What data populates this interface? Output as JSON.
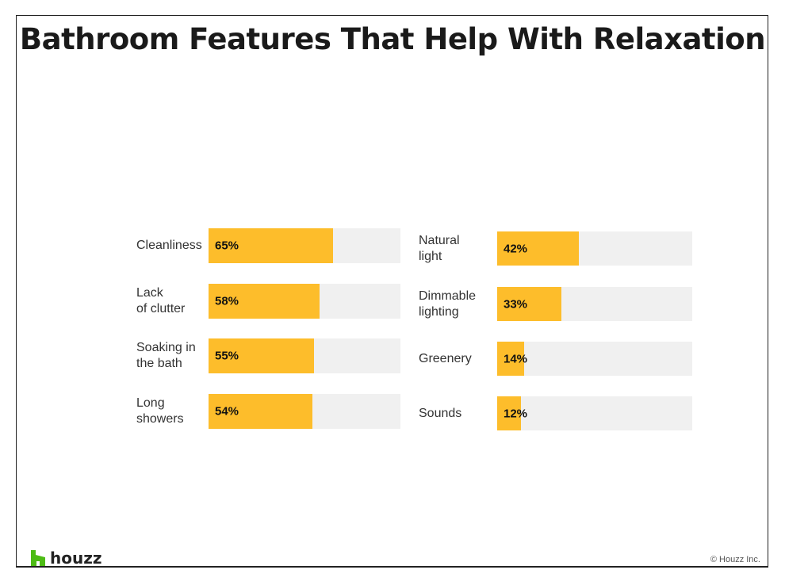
{
  "chart_data": {
    "type": "bar",
    "title": "Bathroom Features That Help With Relaxation",
    "xlabel": "",
    "ylabel": "",
    "xlim": [
      0,
      100
    ],
    "unit": "%",
    "groups": [
      {
        "categories": [
          "Cleanliness",
          "Lack\nof clutter",
          "Soaking in\nthe bath",
          "Long\nshowers"
        ],
        "values": [
          65,
          58,
          55,
          54
        ]
      },
      {
        "categories": [
          "Natural\nlight",
          "Dimmable\nlighting",
          "Greenery",
          "Sounds"
        ],
        "values": [
          42,
          33,
          14,
          12
        ]
      }
    ],
    "colors": {
      "fill": "#fdbd2b",
      "track": "#f0f0f0"
    }
  },
  "footer": {
    "brand": "houzz",
    "copyright": "© Houzz Inc.",
    "brand_color": "#4dbc15"
  }
}
